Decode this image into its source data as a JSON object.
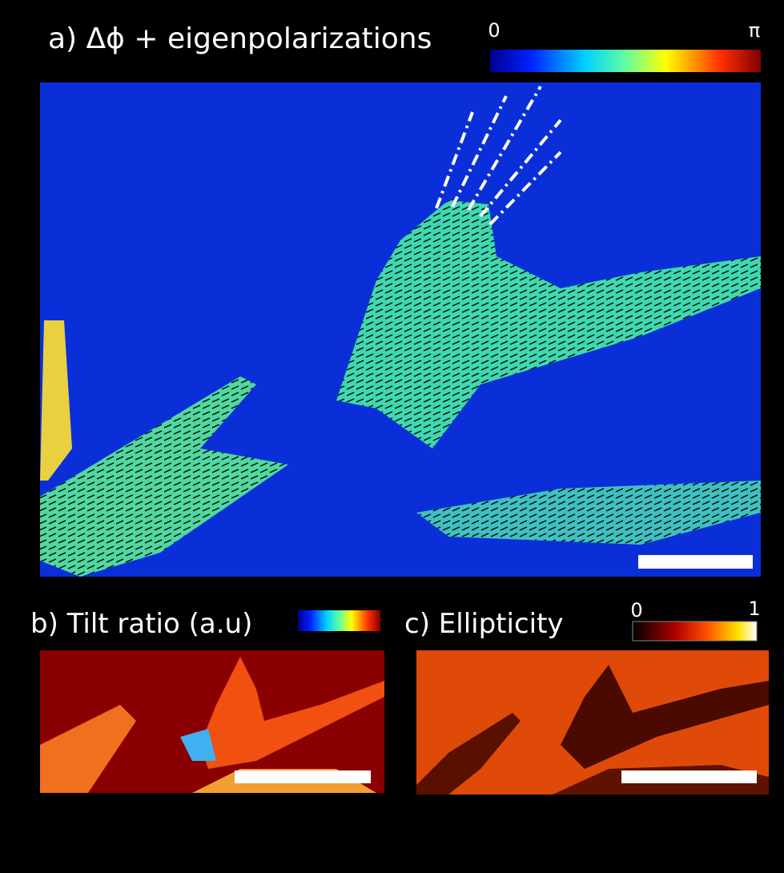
{
  "panel_a": {
    "title": "a) Δϕ + eigenpolarizations",
    "colorbar_min": "0",
    "colorbar_max": "π"
  },
  "panel_b": {
    "title": "b) Tilt ratio (a.u)"
  },
  "panel_c": {
    "title": "c) Ellipticity",
    "colorbar_min": "0",
    "colorbar_max": "1"
  }
}
